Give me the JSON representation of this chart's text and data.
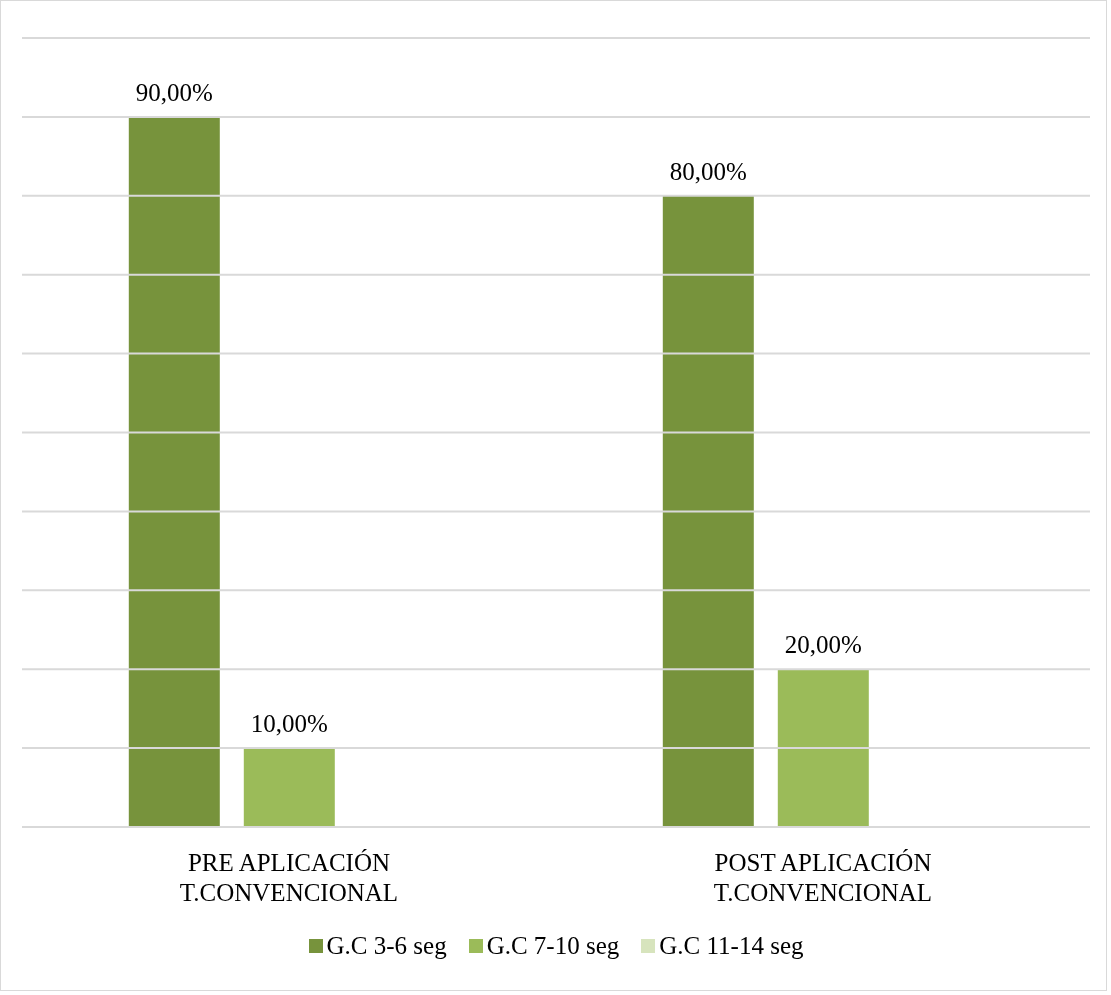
{
  "chart_data": {
    "type": "bar",
    "categories": [
      "PRE APLICACIÓN T.CONVENCIONAL",
      "POST APLICACIÓN T.CONVENCIONAL"
    ],
    "series": [
      {
        "name": "G.C 3-6 seg",
        "color": "#77933c",
        "values": [
          90,
          80
        ],
        "value_labels": [
          "90,00%",
          "80,00%"
        ]
      },
      {
        "name": "G.C 7-10 seg",
        "color": "#9bbb59",
        "values": [
          10,
          20
        ],
        "value_labels": [
          "10,00%",
          "20,00%"
        ]
      },
      {
        "name": "G.C 11-14 seg",
        "color": "#d7e4bd",
        "values": [
          0,
          0
        ],
        "value_labels": [
          null,
          null
        ]
      }
    ],
    "ylim": [
      0,
      100
    ],
    "yticks": [
      {
        "value": 0,
        "label": null
      },
      {
        "value": 10,
        "label": null
      },
      {
        "value": 20,
        "label": null
      },
      {
        "value": 30,
        "label": null
      },
      {
        "value": 40,
        "label": null
      },
      {
        "value": 50,
        "label": null
      },
      {
        "value": 60,
        "label": null
      },
      {
        "value": 70,
        "label": null
      },
      {
        "value": 80,
        "label": null
      },
      {
        "value": 90,
        "label": null
      },
      {
        "value": 100,
        "label": null
      }
    ],
    "tick_labels": "x",
    "grid": "y",
    "legend": "bottom"
  }
}
